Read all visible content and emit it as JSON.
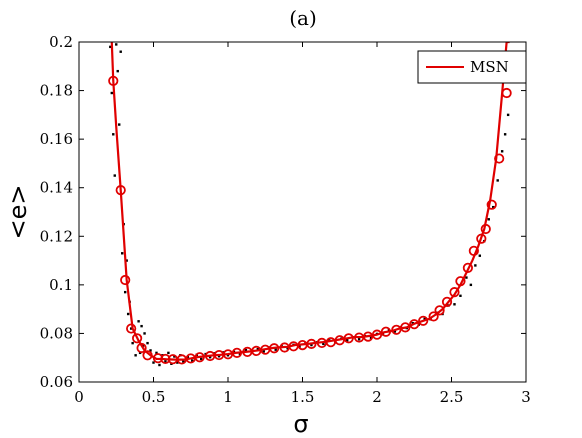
{
  "chart_data": {
    "type": "line",
    "title": "(a)",
    "xlabel": "σ",
    "ylabel": "<e>",
    "xlim": [
      0,
      3
    ],
    "ylim": [
      0.06,
      0.2
    ],
    "xticks": [
      0,
      0.5,
      1,
      1.5,
      2,
      2.5,
      3
    ],
    "xtick_labels": [
      "0",
      "0.5",
      "1",
      "1.5",
      "2",
      "2.5",
      "3"
    ],
    "yticks": [
      0.06,
      0.08,
      0.1,
      0.12,
      0.14,
      0.16,
      0.18,
      0.2
    ],
    "ytick_labels": [
      "0.06",
      "0.08",
      "0.1",
      "0.12",
      "0.14",
      "0.16",
      "0.18",
      "0.2"
    ],
    "grid": false,
    "legend_position": "top-right",
    "colors": {
      "series": "#e00000",
      "markers": "#e00000",
      "scatter": "#000000"
    },
    "series": [
      {
        "name": "MSN",
        "x": [
          0.22,
          0.23,
          0.25,
          0.28,
          0.32,
          0.36,
          0.4,
          0.44,
          0.48,
          0.52,
          0.56,
          0.6,
          0.65,
          0.7,
          0.75,
          0.8,
          0.85,
          0.9,
          0.95,
          1.0,
          1.05,
          1.1,
          1.15,
          1.2,
          1.25,
          1.3,
          1.35,
          1.4,
          1.45,
          1.5,
          1.55,
          1.6,
          1.65,
          1.7,
          1.75,
          1.8,
          1.85,
          1.9,
          1.95,
          2.0,
          2.05,
          2.1,
          2.15,
          2.2,
          2.25,
          2.3,
          2.35,
          2.4,
          2.44,
          2.48,
          2.52,
          2.56,
          2.6,
          2.64,
          2.68,
          2.72,
          2.76,
          2.8,
          2.84,
          2.87,
          2.89
        ],
        "y": [
          0.2,
          0.184,
          0.165,
          0.139,
          0.102,
          0.082,
          0.077,
          0.073,
          0.071,
          0.0695,
          0.0695,
          0.0693,
          0.0692,
          0.0692,
          0.0697,
          0.0703,
          0.0706,
          0.071,
          0.0712,
          0.0715,
          0.072,
          0.0723,
          0.0726,
          0.073,
          0.0735,
          0.074,
          0.0743,
          0.0745,
          0.0752,
          0.0755,
          0.0758,
          0.0762,
          0.0765,
          0.077,
          0.0775,
          0.078,
          0.0785,
          0.0785,
          0.079,
          0.0795,
          0.0805,
          0.081,
          0.082,
          0.0825,
          0.084,
          0.085,
          0.086,
          0.088,
          0.09,
          0.093,
          0.096,
          0.1,
          0.105,
          0.11,
          0.116,
          0.123,
          0.135,
          0.152,
          0.179,
          0.2,
          0.2
        ]
      }
    ],
    "markers": {
      "x": [
        0.23,
        0.28,
        0.31,
        0.35,
        0.39,
        0.42,
        0.46,
        0.53,
        0.58,
        0.63,
        0.69,
        0.75,
        0.81,
        0.88,
        0.94,
        1.0,
        1.06,
        1.13,
        1.19,
        1.25,
        1.31,
        1.38,
        1.44,
        1.5,
        1.56,
        1.63,
        1.69,
        1.75,
        1.81,
        1.88,
        1.94,
        2.0,
        2.06,
        2.13,
        2.19,
        2.25,
        2.31,
        2.38,
        2.42,
        2.47,
        2.52,
        2.56,
        2.61,
        2.65,
        2.7,
        2.73,
        2.77,
        2.82,
        2.87
      ],
      "y": [
        0.184,
        0.139,
        0.102,
        0.082,
        0.078,
        0.074,
        0.071,
        0.0698,
        0.0695,
        0.0694,
        0.0693,
        0.0697,
        0.0702,
        0.0707,
        0.0711,
        0.0714,
        0.072,
        0.0724,
        0.0728,
        0.0733,
        0.0739,
        0.0742,
        0.0747,
        0.0752,
        0.0757,
        0.0761,
        0.0764,
        0.0772,
        0.078,
        0.0783,
        0.0787,
        0.0795,
        0.0807,
        0.0815,
        0.0825,
        0.0838,
        0.0852,
        0.087,
        0.0895,
        0.093,
        0.097,
        0.1015,
        0.107,
        0.114,
        0.119,
        0.123,
        0.133,
        0.152,
        0.179
      ]
    },
    "scatter_points": {
      "x": [
        0.21,
        0.22,
        0.23,
        0.24,
        0.25,
        0.26,
        0.27,
        0.28,
        0.29,
        0.3,
        0.31,
        0.32,
        0.33,
        0.34,
        0.35,
        0.36,
        0.37,
        0.38,
        0.4,
        0.41,
        0.42,
        0.43,
        0.44,
        0.46,
        0.48,
        0.5,
        0.52,
        0.54,
        0.56,
        0.58,
        0.6,
        0.62,
        0.64,
        0.66,
        0.68,
        0.7,
        0.73,
        0.76,
        0.79,
        0.82,
        0.85,
        0.88,
        0.91,
        0.94,
        0.97,
        1.0,
        1.04,
        1.08,
        1.12,
        1.16,
        1.2,
        1.24,
        1.28,
        1.32,
        1.36,
        1.4,
        1.44,
        1.48,
        1.52,
        1.56,
        1.6,
        1.64,
        1.68,
        1.72,
        1.76,
        1.8,
        1.84,
        1.88,
        1.92,
        1.96,
        2.0,
        2.04,
        2.08,
        2.12,
        2.16,
        2.2,
        2.24,
        2.28,
        2.32,
        2.36,
        2.4,
        2.44,
        2.48,
        2.52,
        2.56,
        2.6,
        2.63,
        2.66,
        2.69,
        2.72,
        2.75,
        2.78,
        2.81,
        2.84,
        2.86,
        2.88
      ],
      "y": [
        0.198,
        0.179,
        0.162,
        0.145,
        0.199,
        0.188,
        0.166,
        0.196,
        0.113,
        0.125,
        0.097,
        0.11,
        0.088,
        0.093,
        0.082,
        0.076,
        0.081,
        0.071,
        0.085,
        0.072,
        0.083,
        0.075,
        0.08,
        0.076,
        0.073,
        0.068,
        0.072,
        0.067,
        0.071,
        0.0685,
        0.072,
        0.0675,
        0.0705,
        0.068,
        0.071,
        0.0685,
        0.0702,
        0.0688,
        0.0712,
        0.0695,
        0.0715,
        0.0702,
        0.0718,
        0.0706,
        0.0722,
        0.071,
        0.0724,
        0.0715,
        0.0731,
        0.0722,
        0.0735,
        0.0726,
        0.0742,
        0.0733,
        0.0747,
        0.0739,
        0.0753,
        0.0746,
        0.0759,
        0.0752,
        0.0764,
        0.0757,
        0.0771,
        0.0763,
        0.0778,
        0.0772,
        0.0784,
        0.0776,
        0.0789,
        0.0782,
        0.0798,
        0.0796,
        0.0814,
        0.0808,
        0.0825,
        0.0822,
        0.0842,
        0.0836,
        0.086,
        0.0858,
        0.0885,
        0.088,
        0.0915,
        0.092,
        0.0955,
        0.103,
        0.1,
        0.108,
        0.112,
        0.118,
        0.127,
        0.132,
        0.143,
        0.155,
        0.162,
        0.17
      ]
    }
  }
}
